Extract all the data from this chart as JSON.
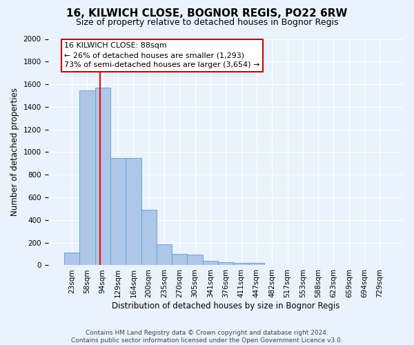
{
  "title": "16, KILWICH CLOSE, BOGNOR REGIS, PO22 6RW",
  "subtitle": "Size of property relative to detached houses in Bognor Regis",
  "xlabel": "Distribution of detached houses by size in Bognor Regis",
  "ylabel": "Number of detached properties",
  "bar_labels": [
    "23sqm",
    "58sqm",
    "94sqm",
    "129sqm",
    "164sqm",
    "200sqm",
    "235sqm",
    "270sqm",
    "305sqm",
    "341sqm",
    "376sqm",
    "411sqm",
    "447sqm",
    "482sqm",
    "517sqm",
    "553sqm",
    "588sqm",
    "623sqm",
    "659sqm",
    "694sqm",
    "729sqm"
  ],
  "bar_values": [
    110,
    1545,
    1570,
    950,
    945,
    490,
    185,
    100,
    95,
    40,
    30,
    20,
    20,
    0,
    0,
    0,
    0,
    0,
    0,
    0,
    0
  ],
  "bar_color": "#aec6e8",
  "bar_edge_color": "#5a9fd4",
  "background_color": "#eaf2fb",
  "grid_color": "#ffffff",
  "red_line_x": 1.83,
  "annotation_text": "16 KILWICH CLOSE: 88sqm\n← 26% of detached houses are smaller (1,293)\n73% of semi-detached houses are larger (3,654) →",
  "annotation_box_color": "#ffffff",
  "annotation_box_edge_color": "#cc0000",
  "ylim": [
    0,
    2000
  ],
  "yticks": [
    0,
    200,
    400,
    600,
    800,
    1000,
    1200,
    1400,
    1600,
    1800,
    2000
  ],
  "footer": "Contains HM Land Registry data © Crown copyright and database right 2024.\nContains public sector information licensed under the Open Government Licence v3.0.",
  "title_fontsize": 11,
  "subtitle_fontsize": 9,
  "xlabel_fontsize": 8.5,
  "ylabel_fontsize": 8.5,
  "tick_fontsize": 7.5,
  "annotation_fontsize": 8,
  "footer_fontsize": 6.5
}
